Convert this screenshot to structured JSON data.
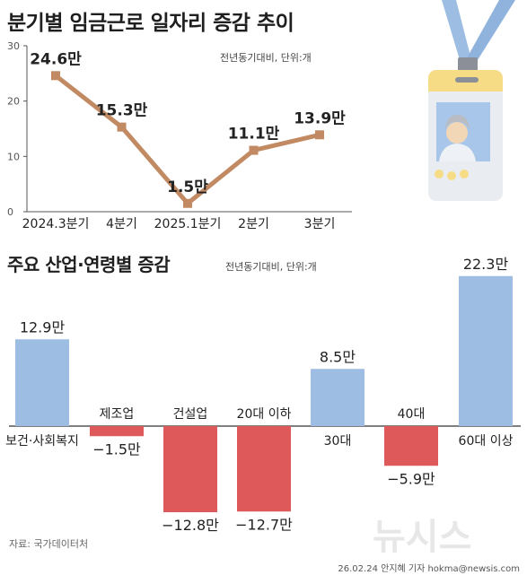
{
  "charts_title": "분기별 임금근로 일자리 증감 추이",
  "line_unit_note": "전년동기대비, 단위:개",
  "bar_title": "주요 산업·연령별 증감",
  "bar_unit_note": "전년동기대비, 단위:개",
  "source": "자료: 국가데이터처",
  "credit": "26.02.24 안지혜 기자 hokma@newsis.com",
  "watermark": "뉴시스",
  "colors": {
    "line": "#c18a63",
    "positive": "#9dbde3",
    "negative": "#de5a5a",
    "badge_lanyard": "#9dbde3"
  },
  "chart_data": [
    {
      "type": "line",
      "title": "분기별 임금근로 일자리 증감 추이",
      "categories": [
        "2024.3분기",
        "4분기",
        "2025.1분기",
        "2분기",
        "3분기"
      ],
      "values": [
        24.6,
        15.3,
        1.5,
        11.1,
        13.9
      ],
      "data_labels": [
        "24.6만",
        "15.3만",
        "1.5만",
        "11.1만",
        "13.9만"
      ],
      "yticks": [
        "0",
        "10",
        "20",
        "30"
      ],
      "ylim": [
        0,
        30
      ],
      "grid": false
    },
    {
      "type": "bar",
      "title": "주요 산업·연령별 증감",
      "categories": [
        "보건·사회복지",
        "제조업",
        "건설업",
        "20대 이하",
        "30대",
        "40대",
        "60대 이상"
      ],
      "values": [
        12.9,
        -1.5,
        -12.8,
        -12.7,
        8.5,
        -5.9,
        22.3
      ],
      "data_labels": [
        "12.9만",
        "−1.5만",
        "−12.8만",
        "−12.7만",
        "8.5만",
        "−5.9만",
        "22.3만"
      ]
    }
  ]
}
